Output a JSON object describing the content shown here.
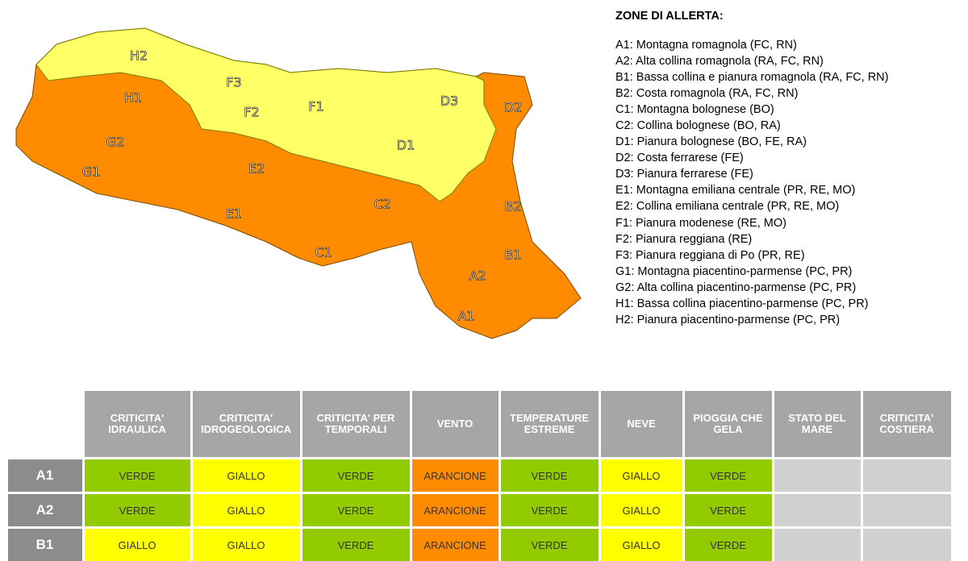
{
  "map": {
    "zones": [
      "H2",
      "F3",
      "F2",
      "F1",
      "D3",
      "D2",
      "H1",
      "G2",
      "G1",
      "E2",
      "D1",
      "C2",
      "B2",
      "E1",
      "C1",
      "B1",
      "A2",
      "A1"
    ]
  },
  "legend": {
    "title": "ZONE DI ALLERTA:",
    "items": [
      "A1: Montagna romagnola (FC, RN)",
      "A2: Alta collina romagnola (RA, FC, RN)",
      "B1: Bassa collina e pianura romagnola (RA, FC, RN)",
      "B2: Costa romagnola (RA, FC, RN)",
      "C1: Montagna bolognese (BO)",
      "C2: Collina bolognese (BO, RA)",
      "D1: Pianura bolognese (BO, FE, RA)",
      "D2: Costa ferrarese (FE)",
      "D3: Pianura ferrarese (FE)",
      "E1: Montagna emiliana centrale (PR, RE, MO)",
      "E2: Collina emiliana centrale (PR, RE, MO)",
      "F1: Pianura modenese (RE, MO)",
      "F2: Pianura reggiana (RE)",
      "F3: Pianura reggiana di Po (PR, RE)",
      "G1: Montagna piacentino-parmense (PC, PR)",
      "G2: Alta collina piacentino-parmense (PC, PR)",
      "H1: Bassa collina piacentino-parmense (PC, PR)",
      "H2: Pianura piacentino-parmense (PC, PR)"
    ]
  },
  "table": {
    "headers": [
      "CRITICITA' IDRAULICA",
      "CRITICITA' IDROGEOLOGICA",
      "CRITICITA' PER TEMPORALI",
      "VENTO",
      "TEMPERATURE ESTREME",
      "NEVE",
      "PIOGGIA CHE GELA",
      "STATO DEL MARE",
      "CRITICITA' COSTIERA"
    ],
    "rows": [
      {
        "zone": "A1",
        "cells": [
          {
            "text": "VERDE",
            "color": "#92cc00"
          },
          {
            "text": "GIALLO",
            "color": "#ffff00"
          },
          {
            "text": "VERDE",
            "color": "#92cc00"
          },
          {
            "text": "ARANCIONE",
            "color": "#ff8c00"
          },
          {
            "text": "VERDE",
            "color": "#92cc00"
          },
          {
            "text": "GIALLO",
            "color": "#ffff00"
          },
          {
            "text": "VERDE",
            "color": "#92cc00"
          }
        ]
      },
      {
        "zone": "A2",
        "cells": [
          {
            "text": "VERDE",
            "color": "#92cc00"
          },
          {
            "text": "GIALLO",
            "color": "#ffff00"
          },
          {
            "text": "VERDE",
            "color": "#92cc00"
          },
          {
            "text": "ARANCIONE",
            "color": "#ff8c00"
          },
          {
            "text": "VERDE",
            "color": "#92cc00"
          },
          {
            "text": "GIALLO",
            "color": "#ffff00"
          },
          {
            "text": "VERDE",
            "color": "#92cc00"
          }
        ]
      },
      {
        "zone": "B1",
        "cells": [
          {
            "text": "GIALLO",
            "color": "#ffff00"
          },
          {
            "text": "GIALLO",
            "color": "#ffff00"
          },
          {
            "text": "VERDE",
            "color": "#92cc00"
          },
          {
            "text": "ARANCIONE",
            "color": "#ff8c00"
          },
          {
            "text": "VERDE",
            "color": "#92cc00"
          },
          {
            "text": "GIALLO",
            "color": "#ffff00"
          },
          {
            "text": "VERDE",
            "color": "#92cc00"
          }
        ]
      }
    ]
  }
}
